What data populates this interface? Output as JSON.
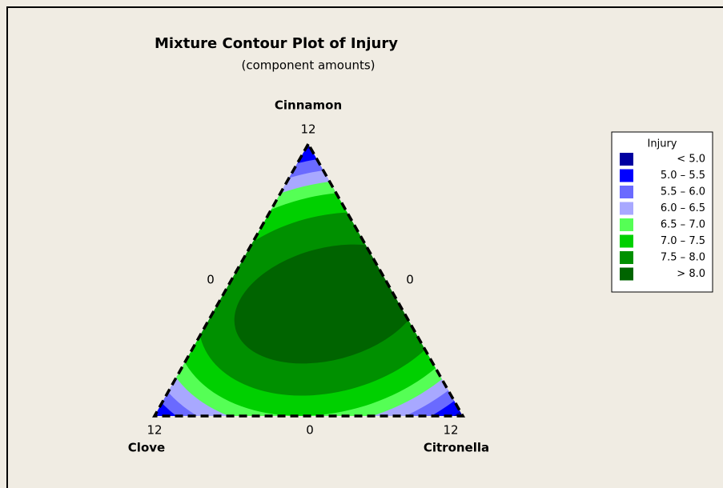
{
  "chart_data": {
    "type": "mixture-contour",
    "title": "Mixture Contour Plot of Injury",
    "subtitle": "(component amounts)",
    "components": [
      "Cinnamon",
      "Clove",
      "Citronella"
    ],
    "vertex_ticks": [
      12,
      12,
      12
    ],
    "edge_ticks": [
      0,
      0,
      0
    ],
    "legend_title": "Injury",
    "legend": [
      {
        "label": "< 5.0",
        "color": "#0000a0"
      },
      {
        "label": "5.0 – 5.5",
        "color": "#0000ff"
      },
      {
        "label": "5.5 – 6.0",
        "color": "#6a6aff"
      },
      {
        "label": "6.0 – 6.5",
        "color": "#a8a8ff"
      },
      {
        "label": "6.5 – 7.0",
        "color": "#55ff55"
      },
      {
        "label": "7.0 – 7.5",
        "color": "#00d000"
      },
      {
        "label": "7.5 – 8.0",
        "color": "#009000"
      },
      {
        "label": "> 8.0",
        "color": "#006400"
      }
    ],
    "breaks": [
      5.0,
      5.5,
      6.0,
      6.5,
      7.0,
      7.5,
      8.0
    ]
  }
}
